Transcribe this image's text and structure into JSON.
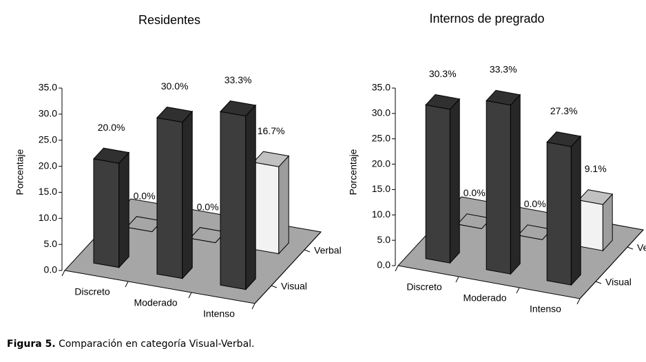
{
  "chart_data": [
    {
      "type": "bar3d",
      "title": "Residentes",
      "ylabel": "Porcentaje",
      "categories": [
        "Discreto",
        "Moderado",
        "Intenso"
      ],
      "series": [
        {
          "name": "Visual",
          "color": "#3d3d3d",
          "values": [
            20.0,
            30.0,
            33.3
          ],
          "value_labels": [
            "20.0%",
            "30.0%",
            "33.3%"
          ]
        },
        {
          "name": "Verbal",
          "color": "#f2f2f2",
          "values": [
            0.0,
            0.0,
            16.7
          ],
          "value_labels": [
            "0.0%",
            "0.0%",
            "16.7%"
          ]
        }
      ],
      "ylim": [
        0,
        35
      ],
      "yticks": [
        {
          "value": 0,
          "label": "0.0"
        },
        {
          "value": 5,
          "label": "5.0"
        },
        {
          "value": 10,
          "label": "10.0"
        },
        {
          "value": 15,
          "label": "15.0"
        },
        {
          "value": 20,
          "label": "20.0"
        },
        {
          "value": 25,
          "label": "25.0"
        },
        {
          "value": 30,
          "label": "30.0"
        },
        {
          "value": 35,
          "label": "35.0"
        }
      ],
      "floor_color": "#a6a6a6"
    },
    {
      "type": "bar3d",
      "title": "Internos de pregrado",
      "ylabel": "Porcentaje",
      "categories": [
        "Discreto",
        "Moderado",
        "Intenso"
      ],
      "series": [
        {
          "name": "Visual",
          "color": "#3d3d3d",
          "values": [
            30.3,
            33.3,
            27.3
          ],
          "value_labels": [
            "30.3%",
            "33.3%",
            "27.3%"
          ]
        },
        {
          "name": "Verbal",
          "color": "#f2f2f2",
          "values": [
            0.0,
            0.0,
            9.1
          ],
          "value_labels": [
            "0.0%",
            "0.0%",
            "9.1%"
          ]
        }
      ],
      "ylim": [
        0,
        35
      ],
      "yticks": [
        {
          "value": 0,
          "label": "0.0"
        },
        {
          "value": 5,
          "label": "5.0"
        },
        {
          "value": 10,
          "label": "10.0"
        },
        {
          "value": 15,
          "label": "15.0"
        },
        {
          "value": 20,
          "label": "20.0"
        },
        {
          "value": 25,
          "label": "25.0"
        },
        {
          "value": 30,
          "label": "30.0"
        },
        {
          "value": 35,
          "label": "35.0"
        }
      ],
      "floor_color": "#a6a6a6"
    }
  ],
  "caption": {
    "label": "Figura 5.",
    "text": "Comparación en categoría Visual-Verbal."
  }
}
